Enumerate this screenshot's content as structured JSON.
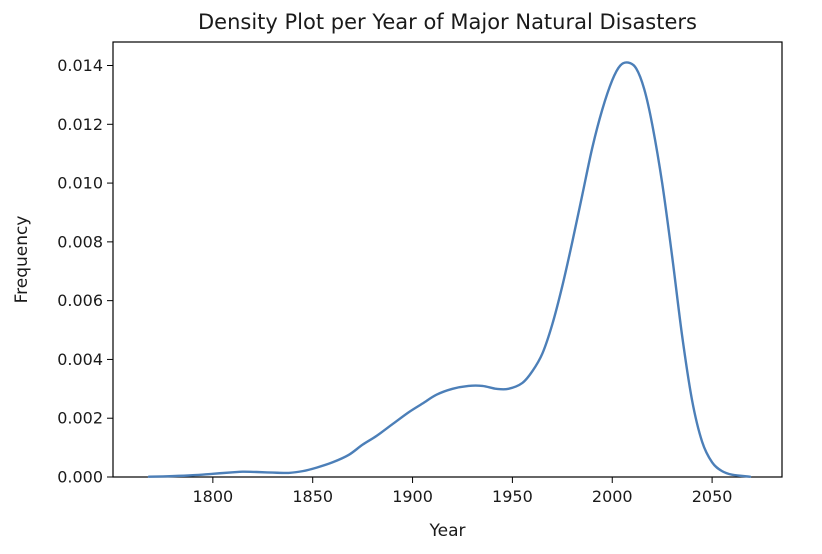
{
  "chart_data": {
    "type": "line",
    "title": "Density Plot per Year of Major Natural Disasters",
    "xlabel": "Year",
    "ylabel": "Frequency",
    "xlim": [
      1750,
      2085
    ],
    "ylim": [
      0,
      0.0148
    ],
    "xticks": [
      1800,
      1850,
      1900,
      1950,
      2000,
      2050
    ],
    "yticks": [
      0,
      0.002,
      0.004,
      0.006,
      0.008,
      0.01,
      0.012,
      0.014
    ],
    "xtick_labels": [
      "1800",
      "1850",
      "1900",
      "1950",
      "2000",
      "2050"
    ],
    "ytick_labels": [
      "0.000",
      "0.002",
      "0.004",
      "0.006",
      "0.008",
      "0.010",
      "0.012",
      "0.014"
    ],
    "grid": false,
    "series": [
      {
        "color": "#4c7fb8",
        "x": [
          1768,
          1780,
          1790,
          1800,
          1810,
          1815,
          1822,
          1830,
          1838,
          1845,
          1852,
          1860,
          1868,
          1875,
          1882,
          1890,
          1898,
          1905,
          1912,
          1920,
          1928,
          1935,
          1942,
          1948,
          1955,
          1960,
          1965,
          1970,
          1975,
          1980,
          1985,
          1990,
          1995,
          2000,
          2004,
          2008,
          2012,
          2016,
          2020,
          2025,
          2030,
          2035,
          2040,
          2045,
          2050,
          2055,
          2060,
          2069
        ],
        "y": [
          1e-05,
          3e-05,
          6e-05,
          0.00011,
          0.00016,
          0.00018,
          0.00017,
          0.00015,
          0.00014,
          0.0002,
          0.00032,
          0.0005,
          0.00075,
          0.0011,
          0.0014,
          0.0018,
          0.0022,
          0.0025,
          0.0028,
          0.003,
          0.0031,
          0.0031,
          0.003,
          0.003,
          0.0032,
          0.0036,
          0.0042,
          0.0052,
          0.0065,
          0.008,
          0.0096,
          0.0112,
          0.0125,
          0.0135,
          0.014,
          0.0141,
          0.0139,
          0.0132,
          0.012,
          0.01,
          0.0075,
          0.0048,
          0.0026,
          0.0012,
          0.0005,
          0.0002,
          8e-05,
          1e-05
        ]
      }
    ]
  }
}
